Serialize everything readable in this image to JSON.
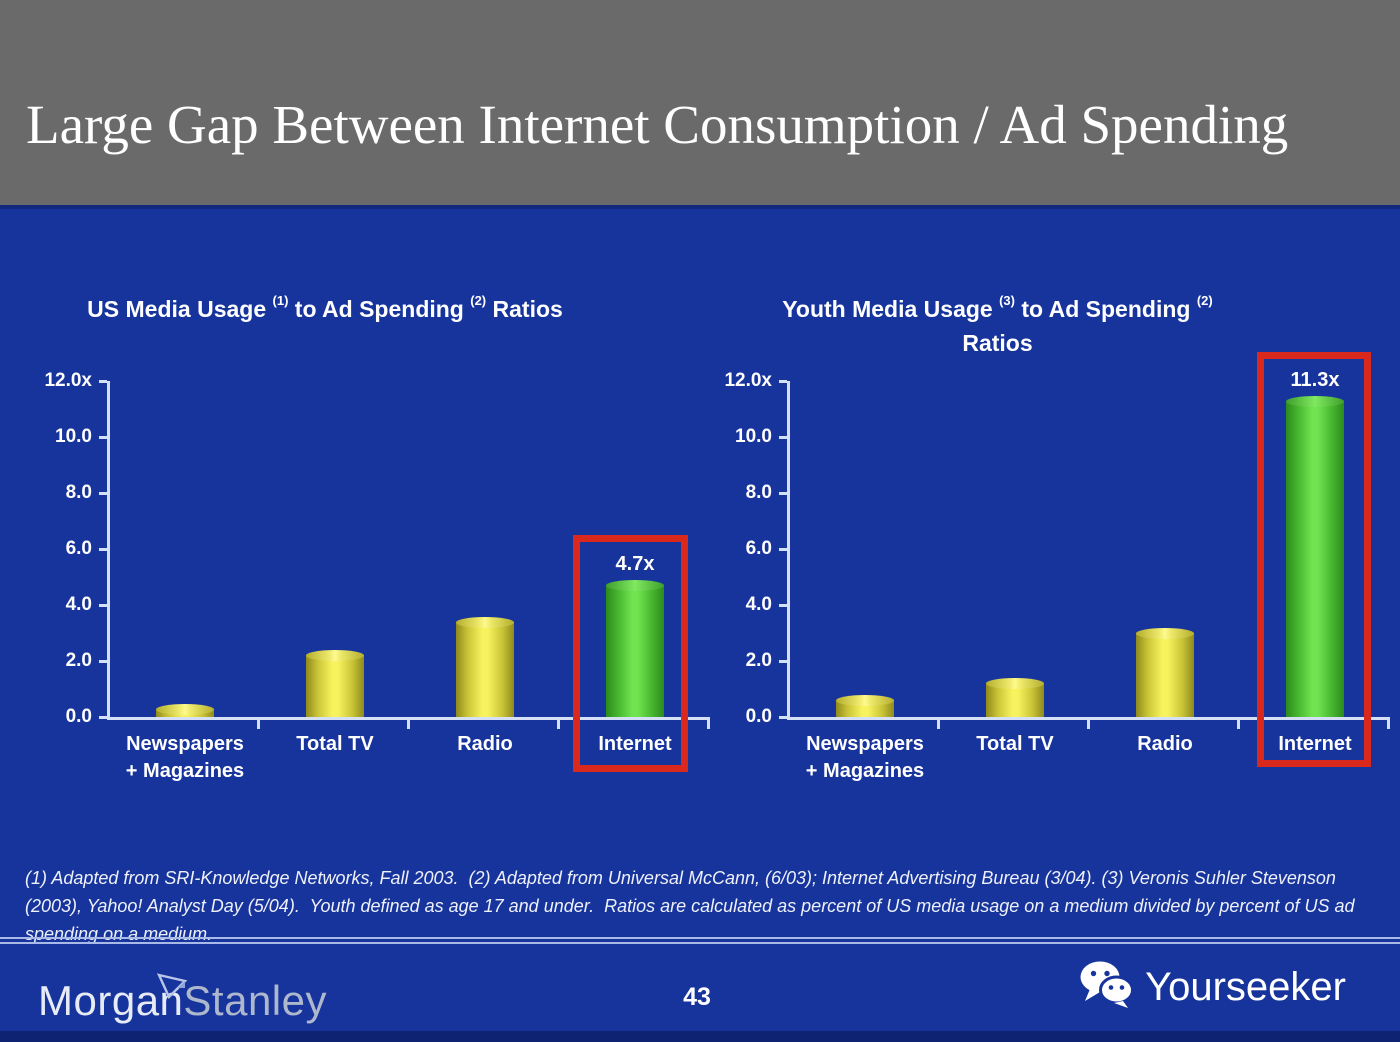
{
  "header": {
    "title": "Large Gap Between Internet Consumption / Ad Spending"
  },
  "chart_data": [
    {
      "type": "bar",
      "title": "US Media Usage (1) to Ad Spending (2) Ratios",
      "title_lines": [
        [
          {
            "text": "US Media Usage "
          },
          {
            "sup": "(1)"
          },
          {
            "text": " to Ad Spending "
          },
          {
            "sup": "(2)"
          },
          {
            "text": " Ratios"
          }
        ]
      ],
      "categories": [
        {
          "key": "newspapers-magazines",
          "lines": [
            "Newspapers",
            "+ Magazines"
          ]
        },
        {
          "key": "total-tv",
          "lines": [
            "Total TV"
          ]
        },
        {
          "key": "radio",
          "lines": [
            "Radio"
          ]
        },
        {
          "key": "internet",
          "lines": [
            "Internet"
          ]
        }
      ],
      "values": [
        0.3,
        2.2,
        3.4,
        4.7
      ],
      "bar_colors": [
        "yellow",
        "yellow",
        "yellow",
        "green"
      ],
      "highlight": {
        "index": 3,
        "label": "4.7x",
        "boxed": true
      },
      "y_tick_labels": [
        "12.0x",
        "10.0",
        "8.0",
        "6.0",
        "4.0",
        "2.0",
        "0.0"
      ],
      "ylim": [
        0,
        12
      ],
      "xlabel": "",
      "ylabel": "",
      "grid": false,
      "legend": null
    },
    {
      "type": "bar",
      "title": "Youth Media Usage (3) to Ad Spending (2) Ratios",
      "title_lines": [
        [
          {
            "text": "Youth Media Usage "
          },
          {
            "sup": "(3)"
          },
          {
            "text": " to Ad Spending "
          },
          {
            "sup": "(2)"
          }
        ],
        [
          {
            "text": "Ratios"
          }
        ]
      ],
      "categories": [
        {
          "key": "newspapers-magazines",
          "lines": [
            "Newspapers",
            "+ Magazines"
          ]
        },
        {
          "key": "total-tv",
          "lines": [
            "Total TV"
          ]
        },
        {
          "key": "radio",
          "lines": [
            "Radio"
          ]
        },
        {
          "key": "internet",
          "lines": [
            "Internet"
          ]
        }
      ],
      "values": [
        0.6,
        1.2,
        3.0,
        11.3
      ],
      "bar_colors": [
        "yellow",
        "yellow",
        "yellow",
        "green"
      ],
      "highlight": {
        "index": 3,
        "label": "11.3x",
        "boxed": true
      },
      "y_tick_labels": [
        "12.0x",
        "10.0",
        "8.0",
        "6.0",
        "4.0",
        "2.0",
        "0.0"
      ],
      "ylim": [
        0,
        12
      ],
      "xlabel": "",
      "ylabel": "",
      "grid": false,
      "legend": null
    }
  ],
  "footnote": {
    "text": "(1) Adapted from SRI-Knowledge Networks, Fall 2003.  (2) Adapted from Universal McCann, (6/03); Internet Advertising Bureau (3/04). (3) Veronis Suhler Stevenson (2003), Yahoo! Analyst Day (5/04).  Youth defined as age 17 and under.  Ratios are calculated as percent of US media usage on a medium divided by percent of US ad spending on a medium."
  },
  "footer": {
    "brand_word1": "Morgan",
    "brand_word2": "Stanley",
    "page_number": "43",
    "watermark_label": "Yourseeker"
  },
  "icons": {
    "brand_mark": "morgan-stanley-delta-icon",
    "watermark": "wechat-icon"
  },
  "colors": {
    "header_gray": "#6a6a6a",
    "background_blue": "#17349c",
    "footer_strip_blue": "#0e2472",
    "axis_light": "#d5dff6",
    "bar_yellow": "#f7f35e",
    "bar_yellow_edge": "#8f891d",
    "bar_green": "#70e351",
    "bar_green_edge": "#2b8a1c",
    "highlight_red": "#d8291c",
    "separator_line": "#a9bae8",
    "text_white": "#ffffff"
  }
}
